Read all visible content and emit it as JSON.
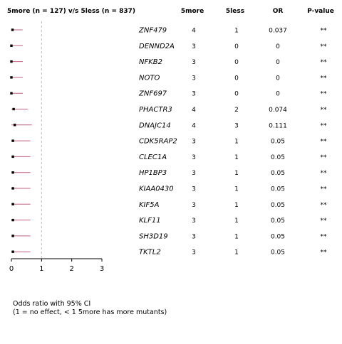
{
  "chart_data": {
    "type": "forest",
    "title": "5more (n = 127) v/s 5less (n = 837)",
    "columns": {
      "gene": "",
      "count_a": "5more",
      "count_b": "5less",
      "or": "OR",
      "p": "P-value"
    },
    "x_axis": {
      "range": [
        0,
        3
      ],
      "ticks": [
        0,
        1,
        2,
        3
      ],
      "reference_line": 1
    },
    "caption_lines": [
      "Odds ratio with 95% CI",
      "(1 = no effect, < 1 5more has more mutants)"
    ],
    "rows": [
      {
        "gene": "ZNF479",
        "count_a": "4",
        "count_b": "1",
        "or_label": "0.037",
        "p_label": "**",
        "estimate": 0.037,
        "ci": [
          0.0,
          0.37
        ]
      },
      {
        "gene": "DENND2A",
        "count_a": "3",
        "count_b": "0",
        "or_label": "0",
        "p_label": "**",
        "estimate": 0.0,
        "ci": [
          0.0,
          0.38
        ]
      },
      {
        "gene": "NFKB2",
        "count_a": "3",
        "count_b": "0",
        "or_label": "0",
        "p_label": "**",
        "estimate": 0.0,
        "ci": [
          0.0,
          0.38
        ]
      },
      {
        "gene": "NOTO",
        "count_a": "3",
        "count_b": "0",
        "or_label": "0",
        "p_label": "**",
        "estimate": 0.0,
        "ci": [
          0.0,
          0.38
        ]
      },
      {
        "gene": "ZNF697",
        "count_a": "3",
        "count_b": "0",
        "or_label": "0",
        "p_label": "**",
        "estimate": 0.0,
        "ci": [
          0.0,
          0.38
        ]
      },
      {
        "gene": "PHACTR3",
        "count_a": "4",
        "count_b": "2",
        "or_label": "0.074",
        "p_label": "**",
        "estimate": 0.074,
        "ci": [
          0.0,
          0.55
        ]
      },
      {
        "gene": "DNAJC14",
        "count_a": "4",
        "count_b": "3",
        "or_label": "0.111",
        "p_label": "**",
        "estimate": 0.111,
        "ci": [
          0.0,
          0.68
        ]
      },
      {
        "gene": "CDK5RAP2",
        "count_a": "3",
        "count_b": "1",
        "or_label": "0.05",
        "p_label": "**",
        "estimate": 0.05,
        "ci": [
          0.0,
          0.63
        ]
      },
      {
        "gene": "CLEC1A",
        "count_a": "3",
        "count_b": "1",
        "or_label": "0.05",
        "p_label": "**",
        "estimate": 0.05,
        "ci": [
          0.0,
          0.63
        ]
      },
      {
        "gene": "HP1BP3",
        "count_a": "3",
        "count_b": "1",
        "or_label": "0.05",
        "p_label": "**",
        "estimate": 0.05,
        "ci": [
          0.0,
          0.63
        ]
      },
      {
        "gene": "KIAA0430",
        "count_a": "3",
        "count_b": "1",
        "or_label": "0.05",
        "p_label": "**",
        "estimate": 0.05,
        "ci": [
          0.0,
          0.63
        ]
      },
      {
        "gene": "KIF5A",
        "count_a": "3",
        "count_b": "1",
        "or_label": "0.05",
        "p_label": "**",
        "estimate": 0.05,
        "ci": [
          0.0,
          0.63
        ]
      },
      {
        "gene": "KLF11",
        "count_a": "3",
        "count_b": "1",
        "or_label": "0.05",
        "p_label": "**",
        "estimate": 0.05,
        "ci": [
          0.0,
          0.63
        ]
      },
      {
        "gene": "SH3D19",
        "count_a": "3",
        "count_b": "1",
        "or_label": "0.05",
        "p_label": "**",
        "estimate": 0.05,
        "ci": [
          0.0,
          0.63
        ]
      },
      {
        "gene": "TKTL2",
        "count_a": "3",
        "count_b": "1",
        "or_label": "0.05",
        "p_label": "**",
        "estimate": 0.05,
        "ci": [
          0.0,
          0.63
        ]
      }
    ],
    "colors": {
      "ci_line": "#c2607f",
      "point": "#000000",
      "reference_line": "#bbbbbb",
      "axis": "#000000"
    },
    "grid": false
  }
}
